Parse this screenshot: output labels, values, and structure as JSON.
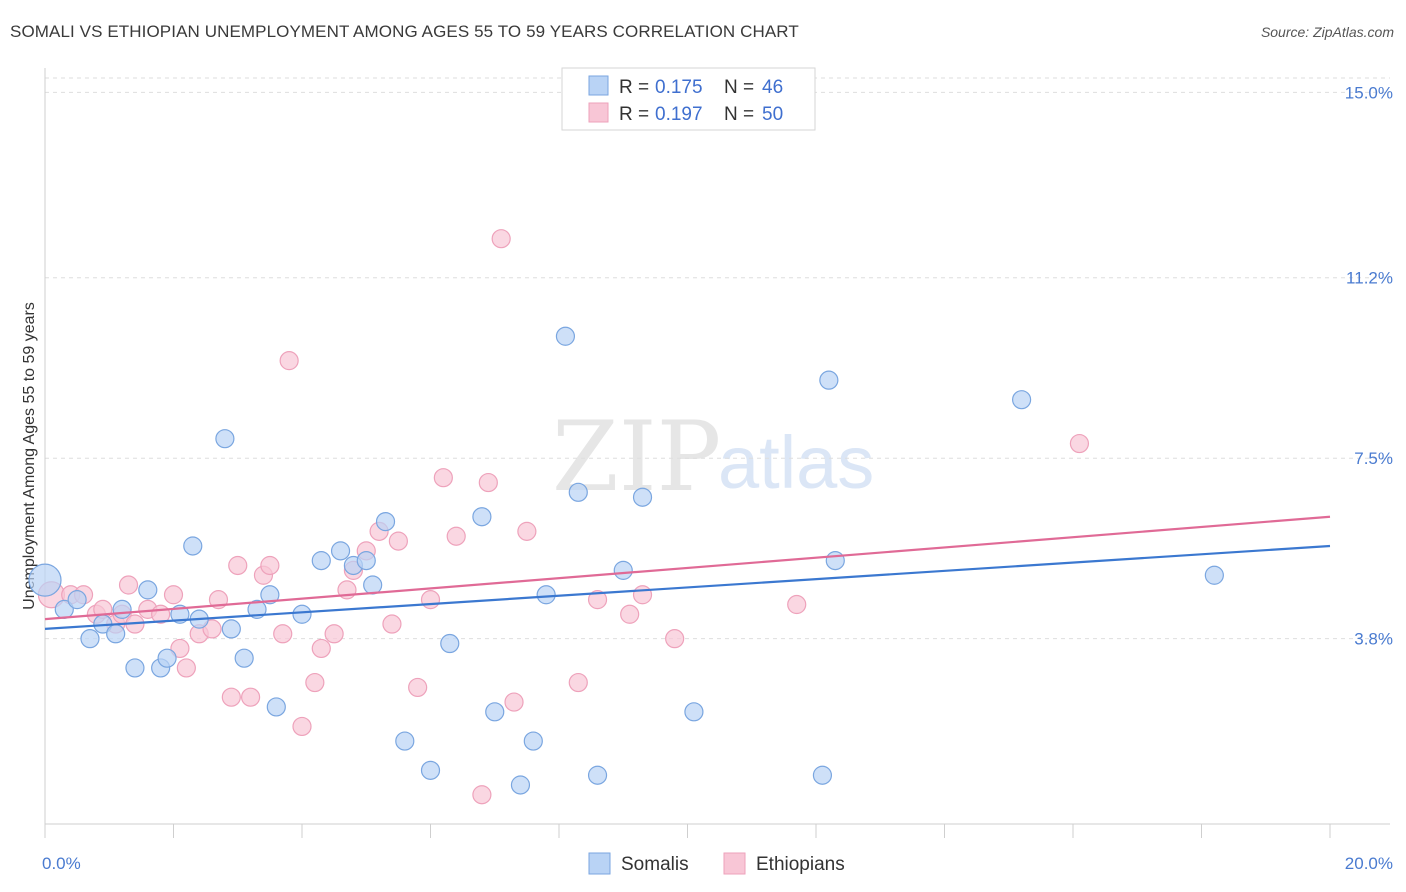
{
  "header": {
    "title": "SOMALI VS ETHIOPIAN UNEMPLOYMENT AMONG AGES 55 TO 59 YEARS CORRELATION CHART",
    "source": "Source: ZipAtlas.com"
  },
  "watermark": {
    "zip": "ZIP",
    "atlas": "atlas"
  },
  "legend": {
    "r_label": "R =",
    "n_label": "N =",
    "somali": {
      "r": "0.175",
      "n": "46"
    },
    "ethiopian": {
      "r": "0.197",
      "n": "50"
    }
  },
  "bottom_legend": {
    "somalis": "Somalis",
    "ethiopians": "Ethiopians"
  },
  "colors": {
    "somali_fill": "#b9d3f5",
    "somali_stroke": "#7aa6e0",
    "somali_line": "#3b78d0",
    "ethiopian_fill": "#f8c6d6",
    "ethiopian_stroke": "#eea2bb",
    "ethiopian_line": "#e06a96",
    "tick_text": "#4a7bd0"
  },
  "chart_data": {
    "type": "scatter",
    "title": "SOMALI VS ETHIOPIAN UNEMPLOYMENT AMONG AGES 55 TO 59 YEARS CORRELATION CHART",
    "xlabel": "",
    "ylabel": "Unemployment Among Ages 55 to 59 years",
    "xlim": [
      0,
      20
    ],
    "ylim": [
      0,
      15.5
    ],
    "x_tick_labels": [
      {
        "value": 0,
        "label": "0.0%"
      },
      {
        "value": 20,
        "label": "20.0%"
      }
    ],
    "y_tick_labels": [
      {
        "value": 3.8,
        "label": "3.8%"
      },
      {
        "value": 7.5,
        "label": "7.5%"
      },
      {
        "value": 11.2,
        "label": "11.2%"
      },
      {
        "value": 15.0,
        "label": "15.0%"
      }
    ],
    "series": [
      {
        "name": "Somalis",
        "trend": {
          "x": [
            0,
            20
          ],
          "y": [
            4.0,
            5.7
          ]
        },
        "points": [
          [
            0.0,
            5.0,
            16
          ],
          [
            0.3,
            4.4,
            9
          ],
          [
            0.5,
            4.6,
            9
          ],
          [
            0.7,
            3.8,
            9
          ],
          [
            0.9,
            4.1,
            9
          ],
          [
            1.1,
            3.9,
            9
          ],
          [
            1.2,
            4.4,
            9
          ],
          [
            1.4,
            3.2,
            9
          ],
          [
            1.6,
            4.8,
            9
          ],
          [
            1.8,
            3.2,
            9
          ],
          [
            1.9,
            3.4,
            9
          ],
          [
            2.1,
            4.3,
            9
          ],
          [
            2.3,
            5.7,
            9
          ],
          [
            2.4,
            4.2,
            9
          ],
          [
            2.8,
            7.9,
            9
          ],
          [
            2.9,
            4.0,
            9
          ],
          [
            3.1,
            3.4,
            9
          ],
          [
            3.3,
            4.4,
            9
          ],
          [
            3.5,
            4.7,
            9
          ],
          [
            3.6,
            2.4,
            9
          ],
          [
            4.0,
            4.3,
            9
          ],
          [
            4.3,
            5.4,
            9
          ],
          [
            4.6,
            5.6,
            9
          ],
          [
            4.8,
            5.3,
            9
          ],
          [
            5.0,
            5.4,
            9
          ],
          [
            5.1,
            4.9,
            9
          ],
          [
            5.3,
            6.2,
            9
          ],
          [
            5.6,
            1.7,
            9
          ],
          [
            6.0,
            1.1,
            9
          ],
          [
            6.3,
            3.7,
            9
          ],
          [
            6.8,
            6.3,
            9
          ],
          [
            7.0,
            2.3,
            9
          ],
          [
            7.4,
            0.8,
            9
          ],
          [
            7.6,
            1.7,
            9
          ],
          [
            7.8,
            4.7,
            9
          ],
          [
            8.1,
            10.0,
            9
          ],
          [
            8.3,
            6.8,
            9
          ],
          [
            8.6,
            1.0,
            9
          ],
          [
            9.0,
            5.2,
            9
          ],
          [
            9.3,
            6.7,
            9
          ],
          [
            10.1,
            2.3,
            9
          ],
          [
            12.1,
            1.0,
            9
          ],
          [
            12.2,
            9.1,
            9
          ],
          [
            12.3,
            5.4,
            9
          ],
          [
            15.2,
            8.7,
            9
          ],
          [
            18.2,
            5.1,
            9
          ]
        ]
      },
      {
        "name": "Ethiopians",
        "trend": {
          "x": [
            0,
            20
          ],
          "y": [
            4.2,
            6.3
          ]
        },
        "points": [
          [
            0.1,
            4.7,
            13
          ],
          [
            0.4,
            4.7,
            9
          ],
          [
            0.6,
            4.7,
            9
          ],
          [
            0.8,
            4.3,
            9
          ],
          [
            0.9,
            4.4,
            9
          ],
          [
            1.1,
            4.1,
            9
          ],
          [
            1.2,
            4.3,
            9
          ],
          [
            1.3,
            4.9,
            9
          ],
          [
            1.4,
            4.1,
            9
          ],
          [
            1.6,
            4.4,
            9
          ],
          [
            1.8,
            4.3,
            9
          ],
          [
            2.0,
            4.7,
            9
          ],
          [
            2.1,
            3.6,
            9
          ],
          [
            2.2,
            3.2,
            9
          ],
          [
            2.4,
            3.9,
            9
          ],
          [
            2.6,
            4.0,
            9
          ],
          [
            2.7,
            4.6,
            9
          ],
          [
            2.9,
            2.6,
            9
          ],
          [
            3.0,
            5.3,
            9
          ],
          [
            3.2,
            2.6,
            9
          ],
          [
            3.4,
            5.1,
            9
          ],
          [
            3.5,
            5.3,
            9
          ],
          [
            3.7,
            3.9,
            9
          ],
          [
            3.8,
            9.5,
            9
          ],
          [
            4.0,
            2.0,
            9
          ],
          [
            4.2,
            2.9,
            9
          ],
          [
            4.3,
            3.6,
            9
          ],
          [
            4.5,
            3.9,
            9
          ],
          [
            4.7,
            4.8,
            9
          ],
          [
            4.8,
            5.2,
            9
          ],
          [
            5.0,
            5.6,
            9
          ],
          [
            5.2,
            6.0,
            9
          ],
          [
            5.4,
            4.1,
            9
          ],
          [
            5.5,
            5.8,
            9
          ],
          [
            5.8,
            2.8,
            9
          ],
          [
            6.0,
            4.6,
            9
          ],
          [
            6.2,
            7.1,
            9
          ],
          [
            6.4,
            5.9,
            9
          ],
          [
            6.8,
            0.6,
            9
          ],
          [
            6.9,
            7.0,
            9
          ],
          [
            7.1,
            12.0,
            9
          ],
          [
            7.3,
            2.5,
            9
          ],
          [
            7.5,
            6.0,
            9
          ],
          [
            8.3,
            2.9,
            9
          ],
          [
            8.6,
            4.6,
            9
          ],
          [
            9.1,
            4.3,
            9
          ],
          [
            9.3,
            4.7,
            9
          ],
          [
            9.8,
            3.8,
            9
          ],
          [
            11.7,
            4.5,
            9
          ],
          [
            16.1,
            7.8,
            9
          ]
        ]
      }
    ]
  }
}
